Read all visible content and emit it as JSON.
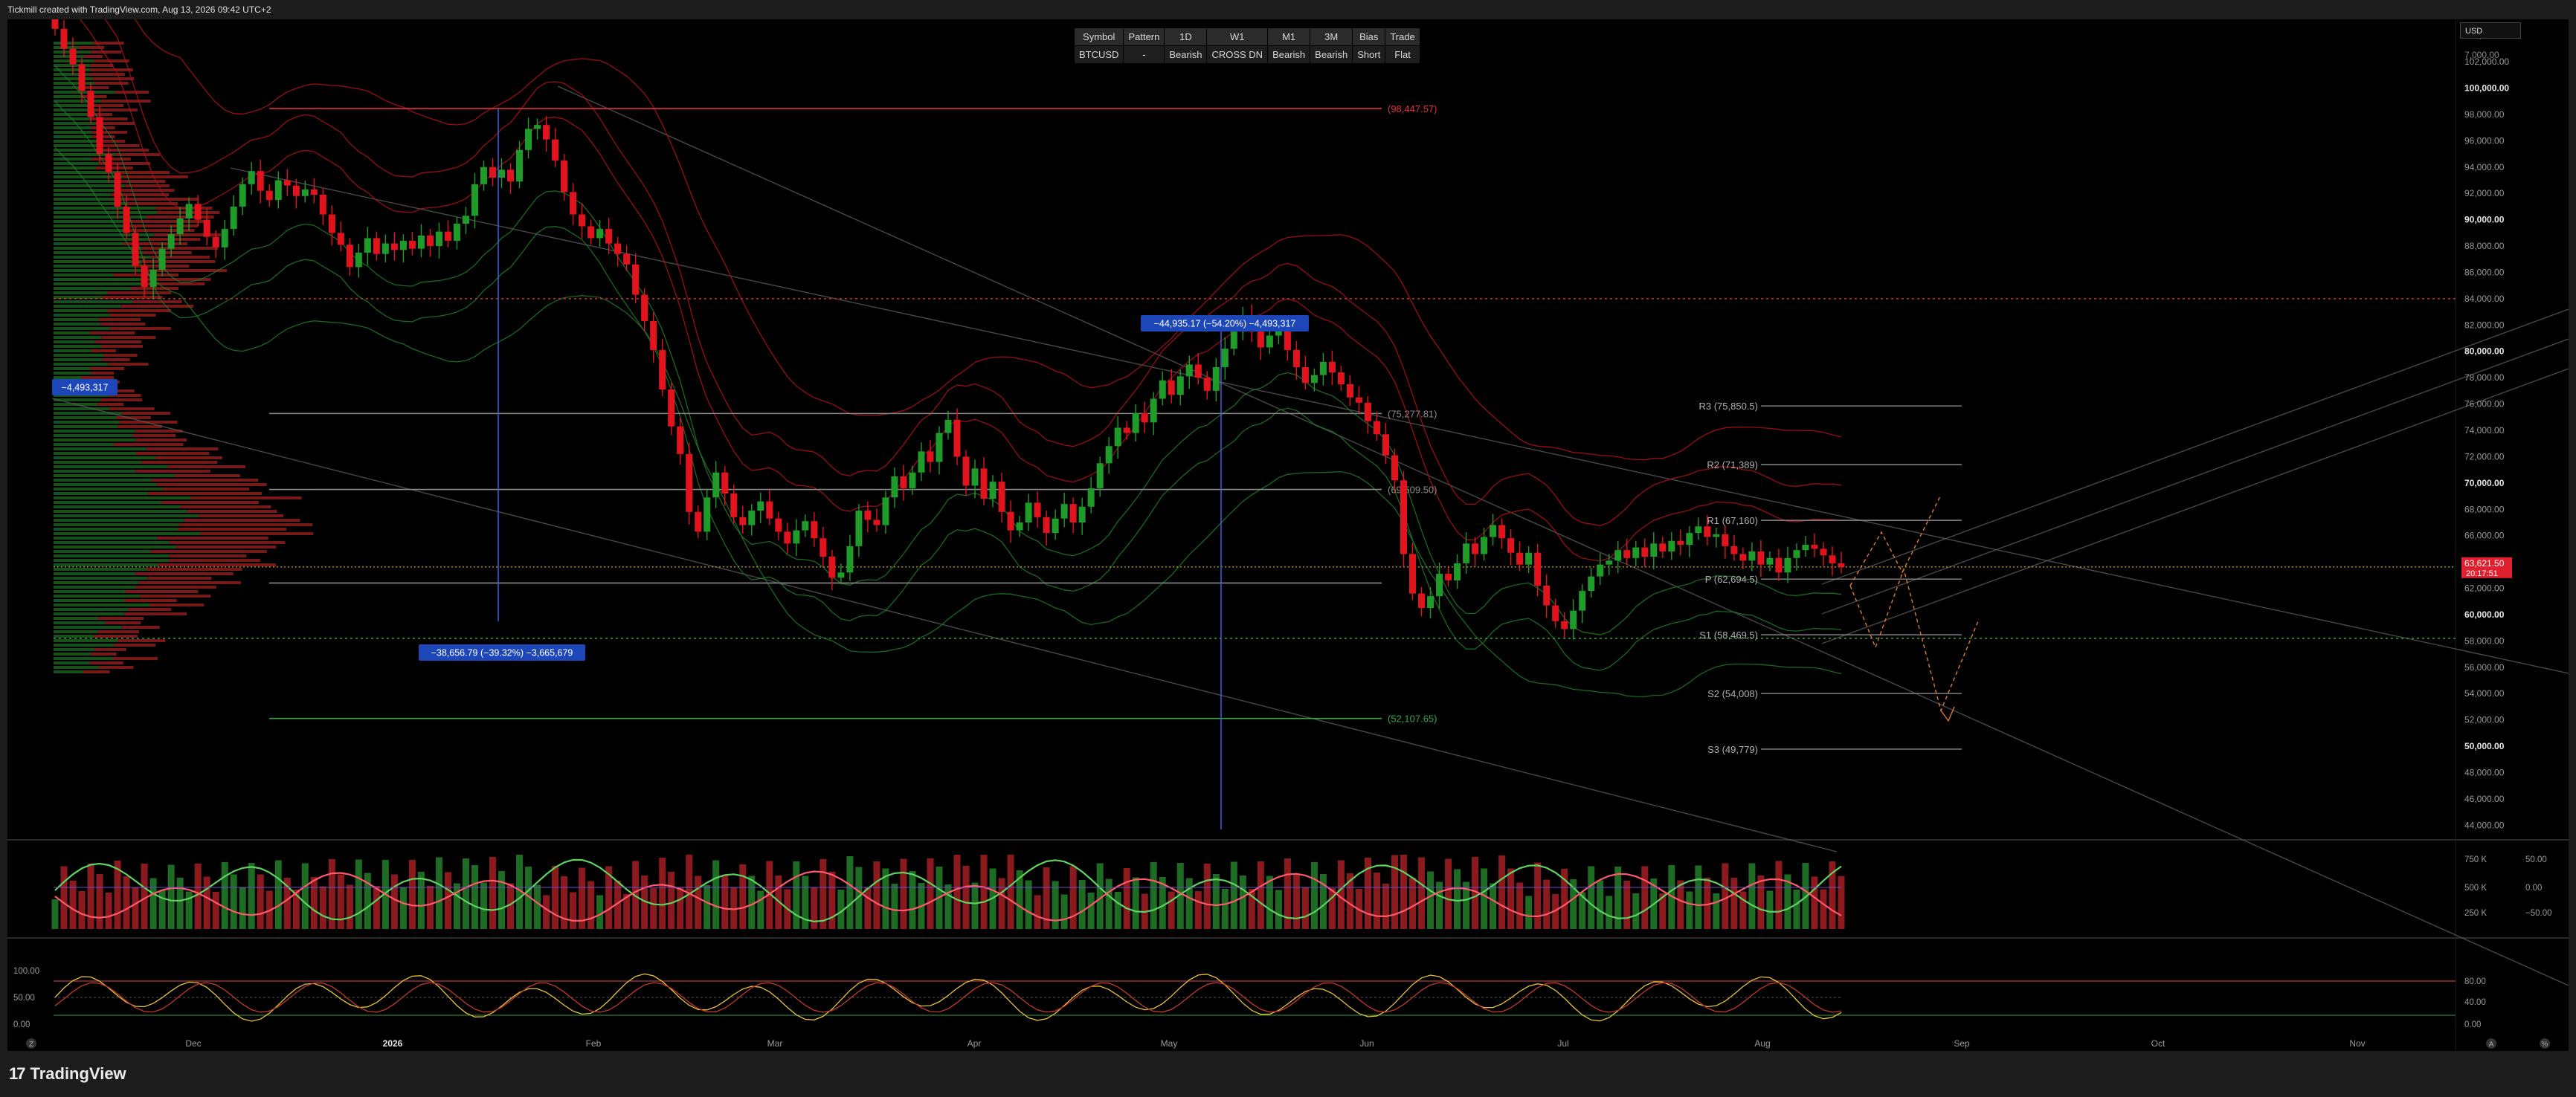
{
  "header": {
    "attribution": "Tickmill created with TradingView.com, Aug 13, 2026 09:42 UTC+2"
  },
  "footer": {
    "brand": "TradingView",
    "logo_glyph": "17",
    "left_badge": "Z",
    "right_badge_a": "A",
    "right_badge_b": "%"
  },
  "currency": "USD",
  "status_table": {
    "headers": [
      "Symbol",
      "Pattern",
      "1D",
      "W1",
      "M1",
      "3M",
      "Bias",
      "Trade"
    ],
    "values": [
      "BTCUSD",
      "-",
      "Bearish",
      "CROSS DN",
      "Bearish",
      "Bearish",
      "Short",
      "Flat"
    ]
  },
  "colors": {
    "bull": "#1f9b2a",
    "bear": "#e1141e",
    "pivot_line": "#8a8a8a",
    "fib_red": "#e0303a",
    "fib_green": "#3aa63f",
    "band_red": "#b01018",
    "band_green": "#1f7a25",
    "info_box": "#1d47b8"
  },
  "chart_data": {
    "type": "candlestick",
    "symbol": "BTCUSD",
    "x_axis": {
      "labels": [
        "Dec",
        "2026",
        "Feb",
        "Mar",
        "Apr",
        "May",
        "Jun",
        "Jul",
        "Aug",
        "Sep",
        "Oct",
        "Nov"
      ]
    },
    "price_axis": {
      "range": [
        43000,
        105000
      ],
      "ticks": [
        104000,
        102000,
        100000,
        98000,
        96000,
        94000,
        92000,
        90000,
        88000,
        86000,
        84000,
        82000,
        80000,
        78000,
        76000,
        74000,
        72000,
        70000,
        68000,
        66000,
        64000,
        62000,
        60000,
        58000,
        56000,
        54000,
        52000,
        50000,
        48000,
        46000,
        44000
      ],
      "tick_labels": [
        "104,000.00",
        "102,000.00",
        "100,000.00",
        "98,000.00",
        "96,000.00",
        "94,000.00",
        "92,000.00",
        "90,000.00",
        "88,000.00",
        "86,000.00",
        "84,000.00",
        "82,000.00",
        "80,000.00",
        "78,000.00",
        "76,000.00",
        "74,000.00",
        "72,000.00",
        "70,000.00",
        "68,000.00",
        "66,000.00",
        "64,000.00",
        "62,000.00",
        "60,000.00",
        "58,000.00",
        "56,000.00",
        "54,000.00",
        "52,000.00",
        "50,000.00",
        "48,000.00",
        "46,000.00",
        "44,000.00"
      ],
      "top_label": "7,000.00",
      "current_price": 63621.5,
      "current_price_label": "63,621.50",
      "countdown_label": "20:17:51"
    },
    "closes": [
      104500,
      103000,
      101800,
      99800,
      97800,
      95000,
      93600,
      91000,
      89000,
      86500,
      84900,
      86200,
      87800,
      88900,
      90100,
      91200,
      90000,
      88700,
      87900,
      89300,
      91000,
      92700,
      93700,
      92200,
      91500,
      93000,
      92600,
      91800,
      92300,
      91900,
      90400,
      89000,
      88100,
      86400,
      87500,
      88600,
      87400,
      88200,
      87700,
      88400,
      87800,
      88800,
      88000,
      89100,
      88400,
      89700,
      90300,
      92700,
      94000,
      93200,
      93800,
      92900,
      95300,
      96900,
      97200,
      96100,
      94500,
      92100,
      90400,
      89500,
      88600,
      89300,
      88200,
      87400,
      86600,
      84300,
      82300,
      80100,
      77100,
      74300,
      72200,
      67800,
      66300,
      68900,
      70800,
      69200,
      67400,
      66800,
      67900,
      68600,
      67300,
      66300,
      65400,
      66400,
      67100,
      65800,
      64400,
      62800,
      63200,
      65200,
      67900,
      67200,
      66800,
      68900,
      70500,
      69600,
      70800,
      72400,
      71600,
      73800,
      74800,
      72000,
      69800,
      71100,
      68800,
      70100,
      67800,
      66400,
      67000,
      68500,
      67400,
      66200,
      67300,
      68400,
      67000,
      68200,
      69600,
      71500,
      72800,
      74200,
      73800,
      75300,
      74600,
      76400,
      77800,
      76700,
      78100,
      79000,
      78000,
      77000,
      78800,
      80200,
      81500,
      82700,
      81500,
      80300,
      81200,
      81900,
      80100,
      78800,
      77600,
      78200,
      79200,
      78400,
      77500,
      76500,
      76100,
      74700,
      73700,
      72100,
      70200,
      64600,
      61600,
      60500,
      61400,
      63100,
      62600,
      63900,
      65400,
      64600,
      65900,
      66800,
      65800,
      64700,
      63800,
      64700,
      62200,
      60700,
      59500,
      58900,
      60300,
      61800,
      62900,
      63800,
      64100,
      64900,
      64300,
      65100,
      64400,
      65400,
      64800,
      65600,
      65300,
      66200,
      66700,
      65900,
      66100,
      65200,
      64600,
      64100,
      64800,
      63800,
      64300,
      63200,
      64300,
      64900,
      65300,
      65000,
      64500,
      63900,
      63621.5
    ],
    "horizontal_levels": [
      {
        "name": "fib-top",
        "price": 98447.57,
        "label": "(98,447.57)",
        "color": "#e0303a"
      },
      {
        "name": "fib-1",
        "price": 75277.81,
        "label": "(75,277.81)",
        "color": "#8a8a8a"
      },
      {
        "name": "fib-2",
        "price": 69509.5,
        "label": "(69,509.50)",
        "color": "#8a8a8a"
      },
      {
        "name": "fib-3",
        "price": 62400,
        "label": "",
        "color": "#8a8a8a"
      },
      {
        "name": "fib-bottom",
        "price": 52107.65,
        "label": "(52,107.65)",
        "color": "#3aa63f"
      }
    ],
    "pivots": [
      {
        "name": "R3",
        "price": 75850.5,
        "label": "R3 (75,850.5)"
      },
      {
        "name": "R2",
        "price": 71389,
        "label": "R2 (71,389)"
      },
      {
        "name": "R1",
        "price": 67160,
        "label": "R1 (67,160)"
      },
      {
        "name": "P",
        "price": 62694.5,
        "label": "P (62,694.5)"
      },
      {
        "name": "S1",
        "price": 58469.5,
        "label": "S1 (58,469.5)"
      },
      {
        "name": "S2",
        "price": 54008,
        "label": "S2 (54,008)"
      },
      {
        "name": "S3",
        "price": 49779,
        "label": "S3 (49,779)"
      }
    ],
    "measurements": [
      {
        "name": "measure-left",
        "text": "−4,493,317"
      },
      {
        "name": "measure-jan",
        "text": "−38,656.79 (−39.32%) −3,665,679"
      },
      {
        "name": "measure-may",
        "text": "−44,935.17 (−54.20%) −4,493,317"
      }
    ],
    "volume_panel": {
      "axis_labels": [
        "750 K",
        "500 K",
        "250 K"
      ],
      "osc_labels": [
        "50.00",
        "0.00",
        "−50.00"
      ]
    },
    "stoch_panel": {
      "left_labels": [
        "100.00",
        "50.00",
        "0.00"
      ],
      "right_labels": [
        "80.00",
        "40.00",
        "0.00"
      ]
    }
  }
}
